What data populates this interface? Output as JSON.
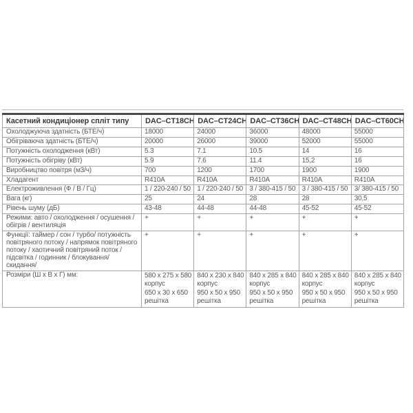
{
  "colors": {
    "page_background": "#ffffff",
    "border_thin": "#a2a2a2",
    "border_top_thick": "#4b4b4b",
    "header_text": "#39393b",
    "body_text": "#59595b"
  },
  "table": {
    "header": {
      "label": "Касетний кондиціонер спліт типу",
      "models": [
        "DAC–CT18CH",
        "DAC–CT24CH",
        "DAC–CT36CH",
        "DAC–CT48CH",
        "DAC–CT60CH"
      ]
    },
    "rows": [
      {
        "label": "Охолоджуюча здатність (БТЕ/ч)",
        "values": [
          "18000",
          "24000",
          "36000",
          "48000",
          "55000"
        ]
      },
      {
        "label": "Обігріваюча здатність (БТЕ/ч)",
        "values": [
          "20000",
          "26000",
          "39000",
          "52000",
          "55000"
        ]
      },
      {
        "label": "Потужність охолодження (кВт)",
        "values": [
          "5.3",
          "7.1",
          "10.5",
          "14",
          "16"
        ]
      },
      {
        "label": "Потужність обігріву (кВт)",
        "values": [
          "5.9",
          "7.6",
          "11.4",
          "15,2",
          "16"
        ]
      },
      {
        "label": "Виробництво повітря (м3/ч)",
        "values": [
          "700",
          "1200",
          "1700",
          "1900",
          "1900"
        ]
      },
      {
        "label": "Хладагент",
        "values": [
          "R410A",
          "R410A",
          "R410A",
          "R410A",
          "R410A"
        ]
      },
      {
        "label": "Електроживлення (Ф / В / Гц)",
        "values": [
          "1 / 220-240 / 50",
          "1 / 220-240 / 50",
          "3 / 380-415 / 50",
          "3 / 380-415 / 50",
          "3/ 380-415 / 50"
        ]
      },
      {
        "label": "Вага (кг)",
        "values": [
          "25",
          "24",
          "28",
          "28",
          "30,5"
        ]
      },
      {
        "label": "Рівень шуму (дБ)",
        "values": [
          "43-48",
          "44-48",
          "44-48",
          "45-52",
          "45-52"
        ]
      },
      {
        "label": "Режими: авто / охолодження / осушення / обігрів / вентиляція",
        "values": [
          "+",
          "+",
          "+",
          "+",
          "+"
        ]
      },
      {
        "label": "Функції: таймер / сон / турбо/ потужність повітряного потоку / напрямок повітряного потоку / хаотичний повітряний поток / підсвітка / годинник / блокування/ скидання/",
        "values": [
          "+",
          "+",
          "+",
          "+",
          "+"
        ]
      },
      {
        "label": "Розміри (Ш х В х Г) мм:",
        "values": [
          "580 х 275 х 580\nкорпус\n650 х 30 х 650\nрешітка",
          "840 х 230 х 840\nкорпус\n950 х 50 х 950\nрешітка",
          "840 х 285 х 840\nкорпус\n950 х 50 х 950\nрешітка",
          "840 х 285 х 840\nкорпус\n950 х 50 х 950\nрешітка",
          "840 х 285 х 840\nкорпус\n950 х 50 х 950\nрешітка"
        ]
      }
    ]
  }
}
